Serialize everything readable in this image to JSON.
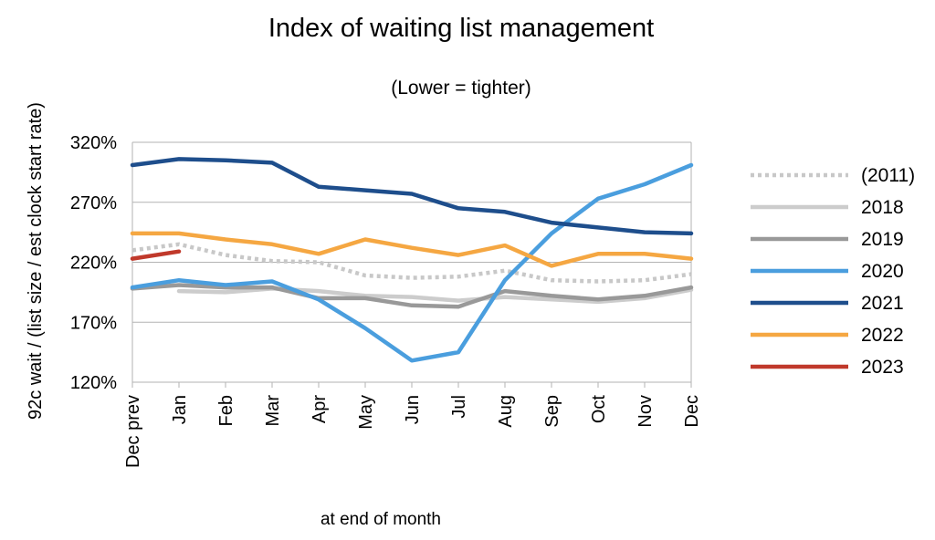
{
  "chart_data": {
    "type": "line",
    "title": "Index of waiting list management",
    "subtitle": "(Lower = tighter)",
    "xlabel": "at end of month",
    "ylabel": "92c wait / (list size / est clock start rate)",
    "categories": [
      "Dec prev",
      "Jan",
      "Feb",
      "Mar",
      "Apr",
      "May",
      "Jun",
      "Jul",
      "Aug",
      "Sep",
      "Oct",
      "Nov",
      "Dec"
    ],
    "ylim": [
      1.2,
      3.2
    ],
    "yticks": [
      1.2,
      1.7,
      2.2,
      2.7,
      3.2
    ],
    "ytick_labels": [
      "120%",
      "170%",
      "220%",
      "270%",
      "320%"
    ],
    "grid": "horizontal",
    "legend_position": "right",
    "series": [
      {
        "name": "(2011)",
        "color": "#c8c8c8",
        "dashed": true,
        "values": [
          2.3,
          2.35,
          2.26,
          2.21,
          2.2,
          2.09,
          2.07,
          2.08,
          2.13,
          2.05,
          2.04,
          2.05,
          2.1
        ]
      },
      {
        "name": "2018",
        "color": "#cccccc",
        "dashed": false,
        "values": [
          null,
          1.96,
          1.95,
          1.98,
          1.96,
          1.92,
          1.91,
          1.88,
          1.91,
          1.89,
          1.87,
          1.9,
          1.97
        ]
      },
      {
        "name": "2019",
        "color": "#999999",
        "dashed": false,
        "values": [
          1.98,
          2.01,
          1.99,
          1.99,
          1.9,
          1.9,
          1.84,
          1.83,
          1.96,
          1.92,
          1.89,
          1.92,
          1.99
        ]
      },
      {
        "name": "2020",
        "color": "#4a9ede",
        "dashed": false,
        "values": [
          1.99,
          2.05,
          2.01,
          2.04,
          1.89,
          1.65,
          1.38,
          1.45,
          2.05,
          2.44,
          2.73,
          2.85,
          3.01
        ]
      },
      {
        "name": "2021",
        "color": "#1e4e8c",
        "dashed": false,
        "values": [
          3.01,
          3.06,
          3.05,
          3.03,
          2.83,
          2.8,
          2.77,
          2.65,
          2.62,
          2.53,
          2.49,
          2.45,
          2.44
        ]
      },
      {
        "name": "2022",
        "color": "#f5a742",
        "dashed": false,
        "values": [
          2.44,
          2.44,
          2.39,
          2.35,
          2.27,
          2.39,
          2.32,
          2.26,
          2.34,
          2.17,
          2.27,
          2.27,
          2.23
        ]
      },
      {
        "name": "2023",
        "color": "#c0392b",
        "dashed": false,
        "values": [
          2.23,
          2.29,
          null,
          null,
          null,
          null,
          null,
          null,
          null,
          null,
          null,
          null,
          null
        ]
      }
    ]
  }
}
